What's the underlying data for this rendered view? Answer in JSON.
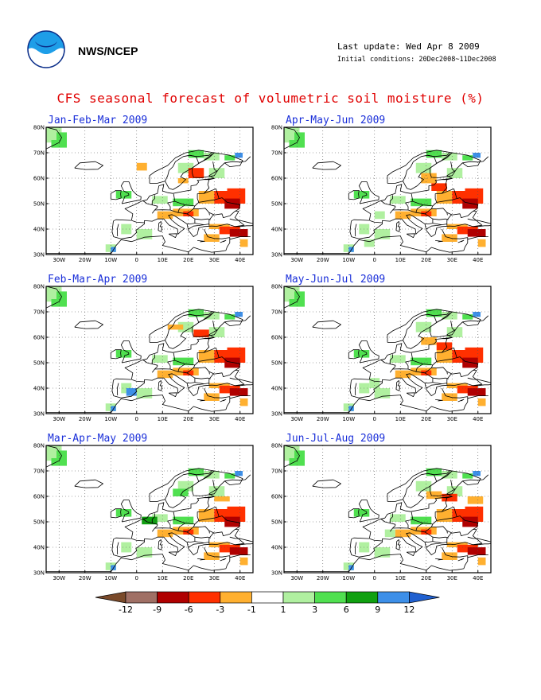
{
  "header": {
    "logo_icon": "noaa-logo-icon",
    "agency": "NWS/NCEP",
    "last_update": "Last update: Wed Apr 8 2009",
    "initial_conditions": "Initial conditions: 20Dec2008~11Dec2008"
  },
  "title": "CFS seasonal forecast of volumetric soil moisture (%)",
  "axes": {
    "lat_labels": [
      "80N",
      "70N",
      "60N",
      "50N",
      "40N",
      "30N"
    ],
    "lon_labels": [
      "30W",
      "20W",
      "10W",
      "0",
      "10E",
      "20E",
      "30E",
      "40E"
    ]
  },
  "panels": [
    {
      "title": "Jan-Feb-Mar 2009"
    },
    {
      "title": "Apr-May-Jun 2009"
    },
    {
      "title": "Feb-Mar-Apr 2009"
    },
    {
      "title": "May-Jun-Jul 2009"
    },
    {
      "title": "Mar-Apr-May 2009"
    },
    {
      "title": "Jun-Jul-Aug 2009"
    }
  ],
  "colorbar": {
    "labels": [
      "-12",
      "-9",
      "-6",
      "-3",
      "-1",
      "1",
      "3",
      "6",
      "9",
      "12"
    ],
    "colors": [
      "#7a4a2a",
      "#a07065",
      "#b00000",
      "#ff3000",
      "#ffb030",
      "#ffffff",
      "#b0f0a0",
      "#50e050",
      "#10a010",
      "#3d8fe8",
      "#2060d0"
    ]
  }
}
